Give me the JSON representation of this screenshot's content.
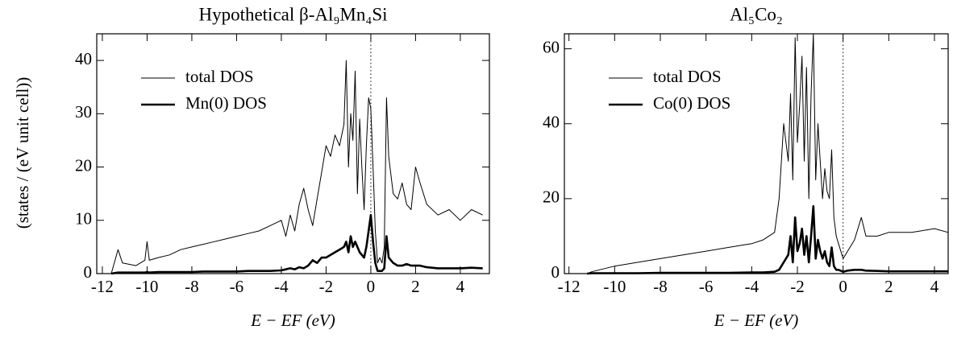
{
  "chart_data": [
    {
      "type": "line",
      "title": "Hypothetical β-Al₉Mn₄Si",
      "xlabel": "E − EF (eV)",
      "ylabel": "(states / (eV unit cell))",
      "x": [
        -11.6,
        -11.3,
        -11.1,
        -10.5,
        -10.1,
        -10,
        -9.9,
        -9.5,
        -9,
        -8.5,
        -8,
        -7.5,
        -7,
        -6.5,
        -6,
        -5.5,
        -5,
        -4.5,
        -4,
        -3.8,
        -3.6,
        -3.4,
        -3.2,
        -3,
        -2.8,
        -2.6,
        -2.4,
        -2.2,
        -2,
        -1.8,
        -1.6,
        -1.4,
        -1.2,
        -1.1,
        -1,
        -0.9,
        -0.8,
        -0.7,
        -0.6,
        -0.5,
        -0.4,
        -0.3,
        -0.2,
        -0.1,
        0,
        0.1,
        0.2,
        0.3,
        0.4,
        0.5,
        0.6,
        0.7,
        0.8,
        1,
        1.2,
        1.4,
        1.6,
        1.8,
        2,
        2.2,
        2.5,
        3,
        3.5,
        4,
        4.5,
        5
      ],
      "series": [
        {
          "name": "total DOS",
          "color": "#000000",
          "values": [
            0,
            4.5,
            2,
            1.5,
            2.5,
            6,
            2.5,
            3,
            3.5,
            4.5,
            5,
            5.5,
            6,
            6.5,
            7,
            7.5,
            8,
            9,
            10,
            7,
            11,
            8,
            13,
            16,
            12,
            9,
            14,
            19,
            24,
            22,
            26,
            24,
            28,
            40,
            20,
            30,
            25,
            38,
            15,
            29,
            20,
            12,
            24,
            33,
            31,
            20,
            8,
            2,
            3,
            2,
            5,
            33,
            22,
            15,
            14,
            17,
            13,
            12,
            20,
            17,
            13,
            11,
            12,
            10,
            12,
            11
          ]
        },
        {
          "name": "Mn(0) DOS",
          "color": "#000000",
          "values": [
            0,
            0.2,
            0.2,
            0.2,
            0.2,
            0.3,
            0.2,
            0.3,
            0.3,
            0.3,
            0.3,
            0.4,
            0.4,
            0.4,
            0.4,
            0.5,
            0.5,
            0.5,
            0.6,
            0.8,
            1,
            0.8,
            1.2,
            1,
            1.5,
            2.5,
            2,
            3,
            3,
            3.5,
            4,
            4.5,
            5,
            6,
            4,
            7,
            5,
            6,
            5,
            4,
            3.5,
            3,
            5,
            8,
            11,
            6,
            2,
            0.5,
            0.5,
            0.5,
            1,
            7,
            3,
            2,
            1.5,
            1.5,
            1.8,
            1.5,
            1.5,
            1.5,
            1.2,
            1,
            1,
            1,
            1.1,
            1
          ]
        }
      ],
      "xlim": [
        -12.25,
        5.3
      ],
      "ylim": [
        0,
        45
      ],
      "xticks": [
        -12,
        -10,
        -8,
        -6,
        -4,
        -2,
        0,
        2,
        4
      ],
      "yticks": [
        0,
        10,
        20,
        30,
        40
      ],
      "vline": 0,
      "legend": "upper left"
    },
    {
      "type": "line",
      "title": "Al₅Co₂",
      "xlabel": "E − EF (eV)",
      "x": [
        -11.2,
        -11,
        -10,
        -9,
        -8,
        -7,
        -6,
        -5,
        -4,
        -3.5,
        -3,
        -2.8,
        -2.6,
        -2.4,
        -2.3,
        -2.2,
        -2.1,
        -2,
        -1.9,
        -1.8,
        -1.7,
        -1.6,
        -1.5,
        -1.4,
        -1.3,
        -1.2,
        -1.1,
        -1,
        -0.9,
        -0.8,
        -0.7,
        -0.6,
        -0.5,
        -0.4,
        -0.3,
        -0.2,
        0,
        0.2,
        0.5,
        0.8,
        1,
        1.5,
        2,
        3,
        4,
        4.6
      ],
      "series": [
        {
          "name": "total DOS",
          "color": "#000000",
          "values": [
            0,
            0.5,
            2,
            3,
            4,
            5,
            6,
            7,
            8,
            9,
            11,
            20,
            40,
            30,
            48,
            25,
            63,
            35,
            45,
            58,
            30,
            55,
            20,
            48,
            64,
            25,
            40,
            30,
            20,
            28,
            22,
            20,
            33,
            15,
            10,
            8,
            4,
            6,
            9,
            15,
            10,
            10,
            11,
            11,
            12,
            11
          ]
        },
        {
          "name": "Co(0) DOS",
          "color": "#000000",
          "values": [
            0,
            0.1,
            0.1,
            0.1,
            0.2,
            0.2,
            0.2,
            0.2,
            0.3,
            0.3,
            0.5,
            1,
            3,
            5,
            10,
            3,
            15,
            6,
            8,
            12,
            5,
            10,
            3,
            10,
            18,
            4,
            9,
            6,
            4,
            6,
            3,
            2,
            7,
            2,
            1,
            1,
            0.5,
            0.8,
            1,
            1,
            0.8,
            0.7,
            0.6,
            0.6,
            0.6,
            0.6
          ]
        }
      ],
      "xlim": [
        -12.2,
        4.6
      ],
      "ylim": [
        0,
        64
      ],
      "xticks": [
        -12,
        -10,
        -8,
        -6,
        -4,
        -2,
        0,
        2,
        4
      ],
      "yticks": [
        0,
        20,
        40,
        60
      ],
      "vline": 0,
      "legend": "upper left"
    }
  ]
}
